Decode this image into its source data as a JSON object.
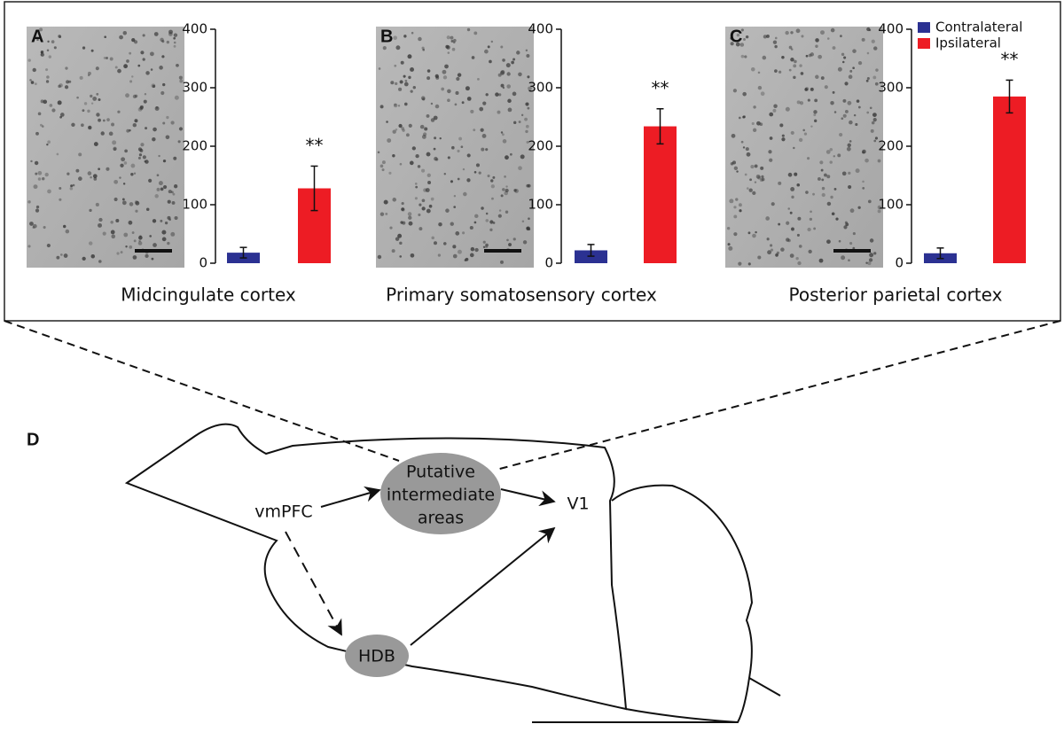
{
  "chart_data": [
    {
      "type": "bar",
      "panel": "A",
      "xlabel": "Midcingulate cortex",
      "annotation": "**",
      "ylim": [
        0,
        400
      ],
      "yticks": [
        0,
        100,
        200,
        300,
        400
      ],
      "categories": [
        null
      ],
      "series": [
        {
          "color": "#2b3192",
          "values": [
            18
          ],
          "errors": [
            9
          ]
        },
        {
          "color": "#ed1c24",
          "values": [
            128
          ],
          "errors": [
            38
          ]
        }
      ]
    },
    {
      "type": "bar",
      "panel": "B",
      "xlabel": "Primary somatosensory cortex",
      "annotation": "**",
      "ylim": [
        0,
        400
      ],
      "yticks": [
        0,
        100,
        200,
        300,
        400
      ],
      "categories": [
        null
      ],
      "series": [
        {
          "color": "#2b3192",
          "values": [
            22
          ],
          "errors": [
            10
          ]
        },
        {
          "color": "#ed1c24",
          "values": [
            234
          ],
          "errors": [
            30
          ]
        }
      ]
    },
    {
      "type": "bar",
      "panel": "C",
      "xlabel": "Posterior parietal cortex",
      "annotation": "**",
      "ylim": [
        0,
        400
      ],
      "yticks": [
        0,
        100,
        200,
        300,
        400
      ],
      "categories": [
        null
      ],
      "legend": "top-right",
      "series": [
        {
          "name": "Contralateral",
          "color": "#2b3192",
          "values": [
            17
          ],
          "errors": [
            9
          ]
        },
        {
          "name": "Ipsilateral",
          "color": "#ed1c24",
          "values": [
            285
          ],
          "errors": [
            28
          ]
        }
      ]
    }
  ],
  "diagram": {
    "panel": "D",
    "source": "vmPFC",
    "intermediate": [
      "Putative",
      "intermediate",
      "areas"
    ],
    "target": "V1",
    "hdb": "HDB"
  }
}
